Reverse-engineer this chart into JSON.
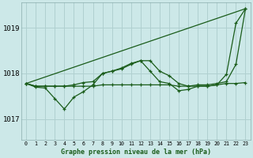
{
  "background_color": "#cce8e8",
  "grid_color": "#b0d0d0",
  "line_color": "#1a5c1a",
  "marker_color": "#1a5c1a",
  "title": "Graphe pression niveau de la mer (hPa)",
  "yticks": [
    1017,
    1018,
    1019
  ],
  "ylim": [
    1016.55,
    1019.55
  ],
  "xlim": [
    -0.5,
    23.5
  ],
  "xticks": [
    0,
    1,
    2,
    3,
    4,
    5,
    6,
    7,
    8,
    9,
    10,
    11,
    12,
    13,
    14,
    15,
    16,
    17,
    18,
    19,
    20,
    21,
    22,
    23
  ],
  "series": [
    {
      "x": [
        0,
        23
      ],
      "y": [
        1017.78,
        1019.42
      ],
      "has_markers": false
    },
    {
      "x": [
        0,
        1,
        2,
        3,
        4,
        5,
        6,
        7,
        8,
        9,
        10,
        11,
        12,
        13,
        14,
        15,
        16,
        17,
        18,
        19,
        20,
        21,
        22,
        23
      ],
      "y": [
        1017.78,
        1017.72,
        1017.72,
        1017.72,
        1017.72,
        1017.75,
        1017.8,
        1017.82,
        1018.0,
        1018.05,
        1018.1,
        1018.2,
        1018.28,
        1018.28,
        1018.05,
        1017.95,
        1017.78,
        1017.72,
        1017.75,
        1017.75,
        1017.78,
        1017.82,
        1018.2,
        1019.42
      ],
      "has_markers": true
    },
    {
      "x": [
        0,
        1,
        2,
        3,
        4,
        5,
        6,
        7,
        8,
        9,
        10,
        11,
        12,
        13,
        14,
        15,
        16,
        17,
        18,
        19,
        20,
        21,
        22,
        23
      ],
      "y": [
        1017.78,
        1017.7,
        1017.68,
        1017.45,
        1017.22,
        1017.48,
        1017.6,
        1017.75,
        1018.0,
        1018.05,
        1018.12,
        1018.22,
        1018.28,
        1018.05,
        1017.82,
        1017.78,
        1017.62,
        1017.65,
        1017.72,
        1017.72,
        1017.75,
        1017.98,
        1019.1,
        1019.42
      ],
      "has_markers": true
    },
    {
      "x": [
        0,
        1,
        2,
        3,
        4,
        5,
        6,
        7,
        8,
        9,
        10,
        11,
        12,
        13,
        14,
        15,
        16,
        17,
        18,
        19,
        20,
        21,
        22,
        23
      ],
      "y": [
        1017.78,
        1017.72,
        1017.72,
        1017.72,
        1017.72,
        1017.72,
        1017.72,
        1017.72,
        1017.75,
        1017.75,
        1017.75,
        1017.75,
        1017.75,
        1017.75,
        1017.75,
        1017.75,
        1017.72,
        1017.72,
        1017.72,
        1017.72,
        1017.75,
        1017.78,
        1017.78,
        1017.8
      ],
      "has_markers": true
    }
  ]
}
